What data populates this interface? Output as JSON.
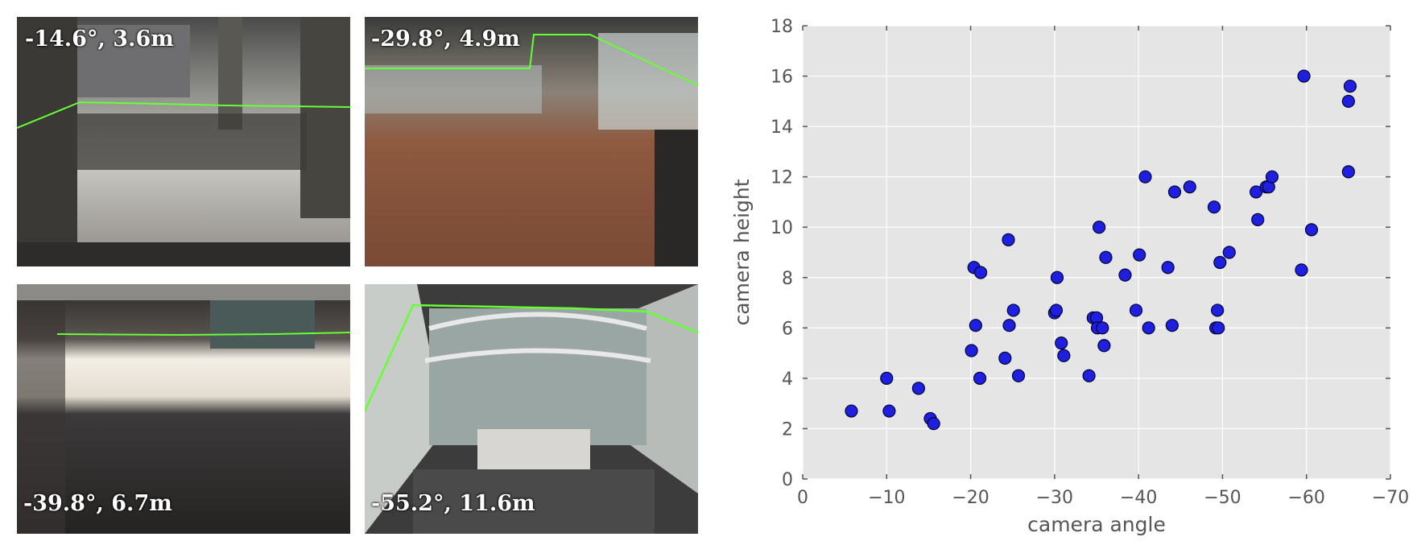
{
  "photos": [
    {
      "caption": "-14.6°, 3.6m"
    },
    {
      "caption": "-29.8°, 4.9m"
    },
    {
      "caption": "-39.8°, 6.7m"
    },
    {
      "caption": "-55.2°, 11.6m"
    }
  ],
  "colors": {
    "point": "#1f1fe0",
    "boundary": "#66ff33",
    "plot_bg": "#e5e5e5"
  },
  "chart_data": {
    "type": "scatter",
    "xlabel": "camera angle",
    "ylabel": "camera height",
    "xlim": [
      0,
      -70
    ],
    "ylim": [
      0,
      18
    ],
    "xticks": [
      "0",
      "−10",
      "−20",
      "−30",
      "−40",
      "−50",
      "−60",
      "−70"
    ],
    "yticks": [
      "0",
      "2",
      "4",
      "6",
      "8",
      "10",
      "12",
      "14",
      "16",
      "18"
    ],
    "grid": true,
    "points": [
      [
        -5.8,
        2.7
      ],
      [
        -10.0,
        4.0
      ],
      [
        -10.3,
        2.7
      ],
      [
        -13.8,
        3.6
      ],
      [
        -15.2,
        2.4
      ],
      [
        -15.6,
        2.2
      ],
      [
        -20.1,
        5.1
      ],
      [
        -20.4,
        8.4
      ],
      [
        -20.6,
        6.1
      ],
      [
        -21.1,
        4.0
      ],
      [
        -21.2,
        8.2
      ],
      [
        -24.1,
        4.8
      ],
      [
        -24.5,
        9.5
      ],
      [
        -24.6,
        6.1
      ],
      [
        -25.1,
        6.7
      ],
      [
        -25.7,
        4.1
      ],
      [
        -30.0,
        6.6
      ],
      [
        -30.2,
        6.7
      ],
      [
        -30.3,
        8.0
      ],
      [
        -30.8,
        5.4
      ],
      [
        -31.1,
        4.9
      ],
      [
        -34.1,
        4.1
      ],
      [
        -34.6,
        6.4
      ],
      [
        -35.0,
        6.4
      ],
      [
        -35.1,
        6.0
      ],
      [
        -35.3,
        10.0
      ],
      [
        -35.7,
        6.0
      ],
      [
        -35.9,
        5.3
      ],
      [
        -36.1,
        8.8
      ],
      [
        -38.4,
        8.1
      ],
      [
        -39.7,
        6.7
      ],
      [
        -40.1,
        8.9
      ],
      [
        -40.8,
        12.0
      ],
      [
        -41.2,
        6.0
      ],
      [
        -43.5,
        8.4
      ],
      [
        -44.0,
        6.1
      ],
      [
        -44.3,
        11.4
      ],
      [
        -46.1,
        11.6
      ],
      [
        -49.0,
        10.8
      ],
      [
        -49.2,
        6.0
      ],
      [
        -49.4,
        6.7
      ],
      [
        -49.5,
        6.0
      ],
      [
        -49.7,
        8.6
      ],
      [
        -50.8,
        9.0
      ],
      [
        -54.0,
        11.4
      ],
      [
        -54.2,
        10.3
      ],
      [
        -55.2,
        11.6
      ],
      [
        -55.5,
        11.6
      ],
      [
        -55.9,
        12.0
      ],
      [
        -59.4,
        8.3
      ],
      [
        -59.7,
        16.0
      ],
      [
        -60.6,
        9.9
      ],
      [
        -65.0,
        15.0
      ],
      [
        -65.0,
        12.2
      ],
      [
        -65.2,
        15.6
      ]
    ]
  }
}
